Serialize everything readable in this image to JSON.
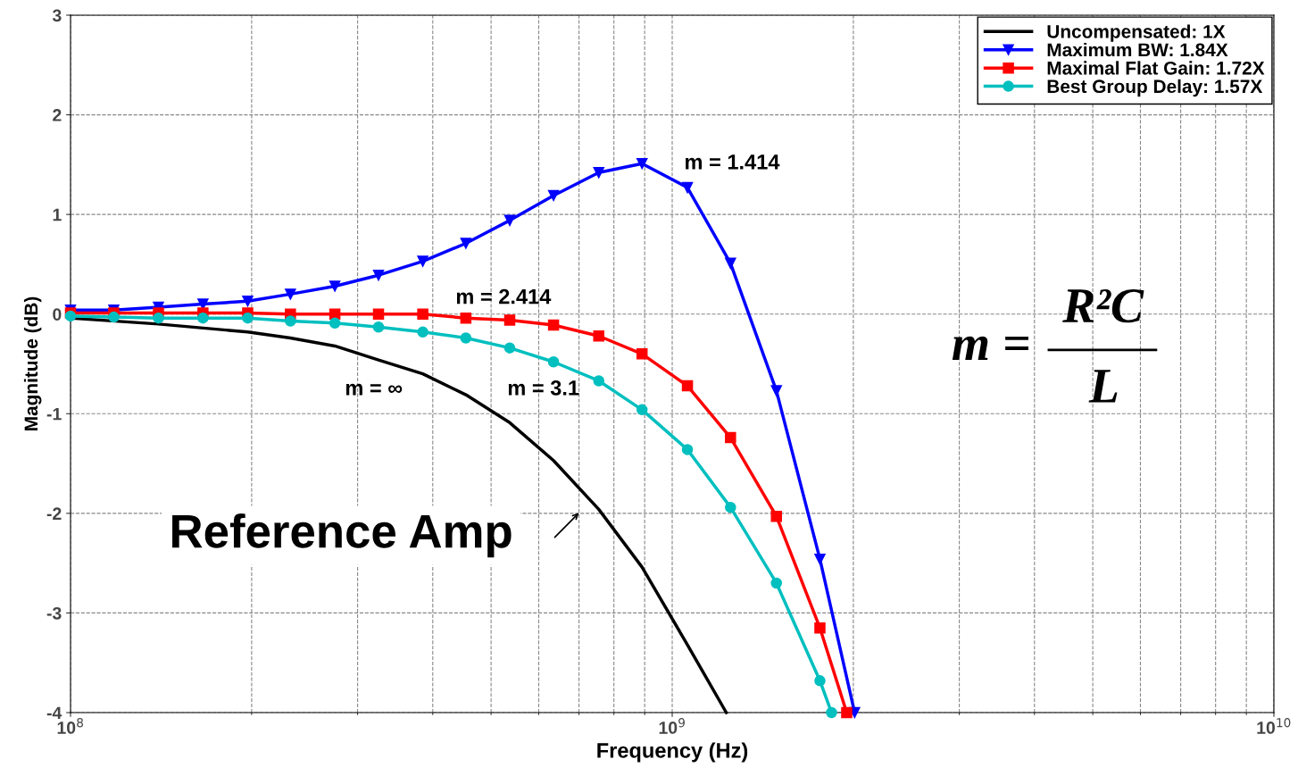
{
  "chart_data": {
    "type": "line",
    "xlabel": "Frequency (Hz)",
    "ylabel": "Magnitude (dB)",
    "log": "x",
    "xlim": [
      100000000.0,
      10000000000.0
    ],
    "xticks": [
      {
        "value": 100000000.0,
        "label": "10$^{8}$"
      },
      {
        "value": 1000000000.0,
        "label": "10$^{9}$"
      },
      {
        "value": 10000000000.0,
        "label": "10$^{10}$"
      }
    ],
    "ylim": [
      -4,
      3
    ],
    "yticks": [
      -4,
      -3,
      -2,
      -1,
      0,
      1,
      2,
      3
    ],
    "grid": true,
    "legend": "top right",
    "line_style": "solid",
    "series": [
      {
        "name": "Uncompensated: 1X",
        "color": "#000000",
        "marker": "none",
        "x": [
          100000000.0,
          140000000.0,
          197000000.0,
          232000000.0,
          275000000.0,
          325000000.0,
          385000000.0,
          454000000.0,
          537000000.0,
          635000000.0,
          755000000.0,
          891000000.0,
          1060000000.0,
          1230000000.0
        ],
        "values": [
          -0.04,
          -0.1,
          -0.18,
          -0.24,
          -0.32,
          -0.46,
          -0.6,
          -0.81,
          -1.09,
          -1.47,
          -1.96,
          -2.54,
          -3.32,
          -4
        ]
      },
      {
        "name": "Maximum BW: 1.84X",
        "color": "#0000ff",
        "marker": "triangle",
        "x": [
          100000000.0,
          118000000.0,
          140000000.0,
          166000000.0,
          197000000.0,
          232000000.0,
          275000000.0,
          325000000.0,
          385000000.0,
          454000000.0,
          537000000.0,
          635000000.0,
          755000000.0,
          891000000.0,
          1060000000.0,
          1250000000.0,
          1490000000.0,
          1760000000.0,
          2010000000.0
        ],
        "values": [
          0.04,
          0.04,
          0.07,
          0.1,
          0.13,
          0.2,
          0.28,
          0.39,
          0.53,
          0.71,
          0.94,
          1.19,
          1.42,
          1.51,
          1.27,
          0.51,
          -0.77,
          -2.46,
          -4
        ]
      },
      {
        "name": "Maximal Flat Gain: 1.72X",
        "color": "#ff0000",
        "marker": "square",
        "x": [
          100000000.0,
          118000000.0,
          140000000.0,
          166000000.0,
          197000000.0,
          232000000.0,
          275000000.0,
          325000000.0,
          385000000.0,
          454000000.0,
          537000000.0,
          635000000.0,
          755000000.0,
          891000000.0,
          1060000000.0,
          1250000000.0,
          1490000000.0,
          1760000000.0,
          1950000000.0
        ],
        "values": [
          0.01,
          0.01,
          0.01,
          0.01,
          0.01,
          0.0,
          0.0,
          0.0,
          0.0,
          -0.04,
          -0.06,
          -0.11,
          -0.22,
          -0.4,
          -0.72,
          -1.24,
          -2.03,
          -3.15,
          -4
        ]
      },
      {
        "name": "Best Group Delay: 1.57X",
        "color": "#00bfbf",
        "marker": "circle",
        "x": [
          100000000.0,
          118000000.0,
          140000000.0,
          166000000.0,
          197000000.0,
          232000000.0,
          275000000.0,
          325000000.0,
          385000000.0,
          454000000.0,
          537000000.0,
          635000000.0,
          755000000.0,
          891000000.0,
          1060000000.0,
          1250000000.0,
          1490000000.0,
          1760000000.0,
          1840000000.0
        ],
        "values": [
          -0.02,
          -0.03,
          -0.04,
          -0.04,
          -0.04,
          -0.07,
          -0.09,
          -0.13,
          -0.18,
          -0.24,
          -0.34,
          -0.48,
          -0.67,
          -0.96,
          -1.36,
          -1.94,
          -2.7,
          -3.68,
          -4
        ]
      }
    ],
    "annotations": [
      "m = 1.414",
      "m = 2.414",
      "m = ∞",
      "m = 3.1",
      "Reference Amp",
      "m =",
      "R²C",
      "L"
    ]
  }
}
